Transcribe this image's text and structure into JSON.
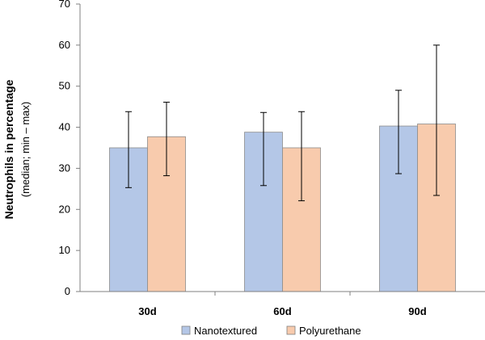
{
  "chart_data": {
    "type": "bar",
    "title": "",
    "xlabel": "",
    "ylabel": "Neutrophils in percentage",
    "ylabel_sub": "(median;  min – max)",
    "ylim": [
      0,
      70
    ],
    "yticks": [
      0,
      10,
      20,
      30,
      40,
      50,
      60,
      70
    ],
    "categories": [
      "30d",
      "60d",
      "90d"
    ],
    "series": [
      {
        "name": "Nanotextured",
        "color": "#b4c7e7",
        "values": [
          35,
          38.8,
          40.3
        ],
        "min": [
          25.3,
          25.8,
          28.7
        ],
        "max": [
          43.8,
          43.6,
          49.0
        ]
      },
      {
        "name": "Polyurethane",
        "color": "#f8cbad",
        "values": [
          37.7,
          35,
          40.8
        ],
        "min": [
          28.2,
          22.1,
          23.4
        ],
        "max": [
          46.1,
          43.8,
          60.0
        ]
      }
    ],
    "grid": false,
    "legend_position": "bottom"
  }
}
